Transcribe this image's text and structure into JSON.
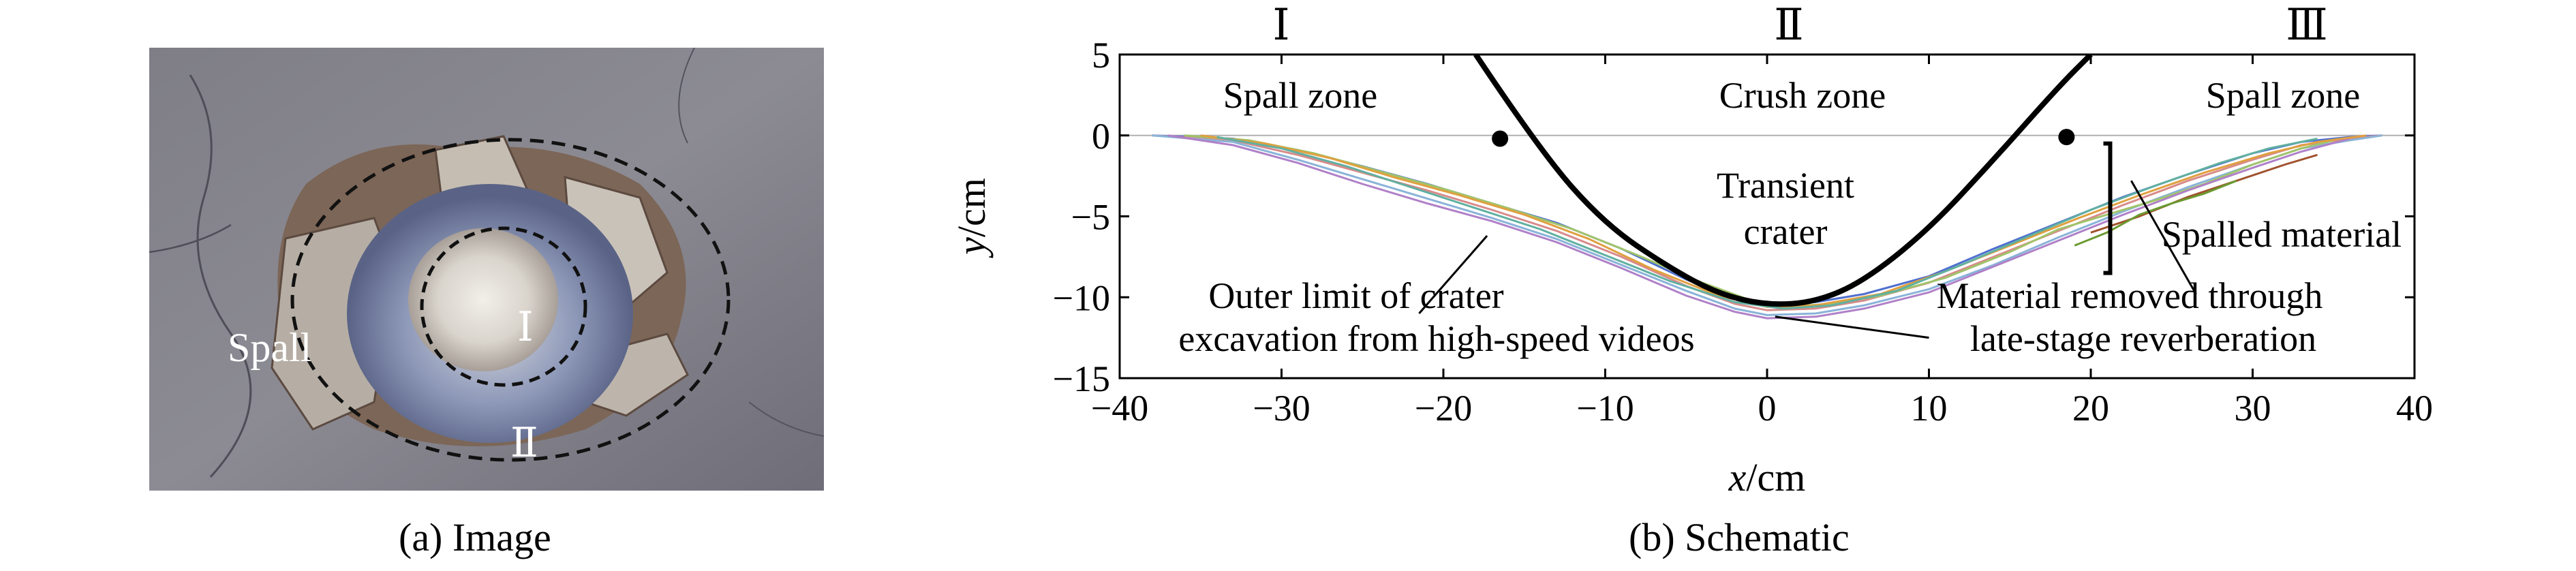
{
  "image_panel": {
    "caption": "(a) Image",
    "spall_label": "Spall",
    "region_I_label": "Ⅰ",
    "region_II_label": "Ⅱ"
  },
  "chart_panel": {
    "caption": "(b) Schematic"
  },
  "chart_data": {
    "type": "line",
    "title": "",
    "xlabel_var": "x",
    "xlabel_unit": "/cm",
    "ylabel_var": "y",
    "ylabel_unit": "/cm",
    "xlim": [
      -40,
      40
    ],
    "ylim": [
      -15,
      5
    ],
    "x_ticks": [
      -40,
      -30,
      -20,
      -10,
      0,
      10,
      20,
      30,
      40
    ],
    "x_tick_labels": [
      "−40",
      "−30",
      "−20",
      "−10",
      "0",
      "10",
      "20",
      "30",
      "40"
    ],
    "y_ticks": [
      5,
      0,
      -5,
      -10,
      -15
    ],
    "y_tick_labels": [
      "5",
      "0",
      "−5",
      "−10",
      "−15"
    ],
    "grid": false,
    "zone_numerals": [
      "Ⅰ",
      "Ⅱ",
      "Ⅲ"
    ],
    "zone_labels": [
      "Spall zone",
      "Crush zone",
      "Spall zone"
    ],
    "annotations": {
      "transient_crater_line1": "Transient",
      "transient_crater_line2": "crater",
      "outer_limit_line1": "Outer limit of crater",
      "outer_limit_line2": "excavation from high-speed videos",
      "material_removed_line1": "Material removed through",
      "material_removed_line2": "late-stage reverberation",
      "spalled_material": "Spalled material"
    },
    "transient_crater_curve": {
      "x": [
        -18,
        -14,
        -10,
        -6,
        -3,
        0,
        3,
        6,
        10,
        14,
        18,
        20
      ],
      "y": [
        5,
        -1.0,
        -5.5,
        -8.2,
        -9.8,
        -10.5,
        -10.3,
        -9.0,
        -5.8,
        -1.5,
        3.0,
        5.0
      ]
    },
    "reference_points": [
      {
        "x": -16.5,
        "y": -0.2
      },
      {
        "x": 18.5,
        "y": -0.1
      }
    ],
    "series": [
      {
        "color": "#4f6fcf",
        "x": [
          -38,
          -33,
          -29,
          -25,
          -21,
          -17,
          -13,
          -9,
          -5,
          -2,
          0,
          3,
          6,
          10,
          14,
          18,
          22,
          26,
          30,
          33,
          36,
          38
        ],
        "y": [
          0,
          -0.2,
          -0.9,
          -1.9,
          -3.0,
          -4.2,
          -5.4,
          -7.0,
          -8.9,
          -10.1,
          -10.4,
          -10.3,
          -9.8,
          -8.7,
          -7.0,
          -5.4,
          -3.8,
          -2.4,
          -1.1,
          -0.4,
          -0.1,
          0
        ]
      },
      {
        "color": "#d88a8a",
        "x": [
          -38,
          -33,
          -29,
          -25,
          -21,
          -17,
          -13,
          -9,
          -5,
          -2,
          0,
          3,
          6,
          10,
          14,
          18,
          22,
          26,
          30,
          33,
          36,
          38
        ],
        "y": [
          0,
          -0.3,
          -1.2,
          -2.3,
          -3.4,
          -4.6,
          -5.9,
          -7.5,
          -9.3,
          -10.4,
          -10.8,
          -10.7,
          -10.2,
          -9.1,
          -7.5,
          -5.9,
          -4.3,
          -2.8,
          -1.5,
          -0.6,
          -0.2,
          0
        ]
      },
      {
        "color": "#8ab3d8",
        "x": [
          -38,
          -33,
          -29,
          -25,
          -21,
          -17,
          -13,
          -9,
          -5,
          -2,
          0,
          3,
          6,
          10,
          14,
          18,
          22,
          26,
          30,
          33,
          36,
          38
        ],
        "y": [
          0,
          -0.4,
          -1.5,
          -2.7,
          -3.9,
          -5.1,
          -6.4,
          -8.0,
          -9.6,
          -10.7,
          -11.1,
          -11.0,
          -10.5,
          -9.5,
          -8.0,
          -6.3,
          -4.7,
          -3.2,
          -1.8,
          -0.8,
          -0.3,
          0
        ]
      },
      {
        "color": "#a0c46a",
        "x": [
          -36,
          -32,
          -28,
          -24,
          -20,
          -16,
          -12,
          -8,
          -4,
          -1,
          1,
          4,
          7,
          11,
          15,
          18,
          21,
          24,
          27,
          30,
          33,
          35
        ],
        "y": [
          0,
          -0.3,
          -1.1,
          -2.2,
          -3.3,
          -4.5,
          -5.8,
          -7.4,
          -9.1,
          -10.2,
          -10.6,
          -10.4,
          -9.9,
          -8.8,
          -7.2,
          -5.8,
          -4.9,
          -4.0,
          -3.0,
          -1.8,
          -0.8,
          -0.3
        ]
      },
      {
        "color": "#b080c8",
        "x": [
          -37,
          -33,
          -29,
          -25,
          -21,
          -17,
          -13,
          -9,
          -5,
          -2,
          0,
          3,
          6,
          10,
          14,
          18,
          22,
          26,
          30,
          33,
          36
        ],
        "y": [
          0,
          -0.6,
          -1.7,
          -3.0,
          -4.2,
          -5.3,
          -6.6,
          -8.2,
          -9.9,
          -10.9,
          -11.3,
          -11.2,
          -10.7,
          -9.7,
          -8.1,
          -6.5,
          -4.9,
          -3.4,
          -2.0,
          -1.0,
          -0.2
        ]
      },
      {
        "color": "#e0a040",
        "x": [
          -35,
          -31,
          -27,
          -23,
          -19,
          -15,
          -11,
          -7,
          -3,
          0,
          3,
          7,
          11,
          15,
          19,
          23,
          27,
          31,
          34,
          37
        ],
        "y": [
          0,
          -0.5,
          -1.4,
          -2.6,
          -3.7,
          -4.9,
          -6.4,
          -8.3,
          -9.9,
          -10.6,
          -10.5,
          -9.8,
          -8.4,
          -6.8,
          -5.2,
          -3.7,
          -2.3,
          -1.1,
          -0.4,
          0
        ]
      },
      {
        "color": "#60b0a0",
        "x": [
          -34,
          -30,
          -26,
          -22,
          -18,
          -14,
          -10,
          -6,
          -2,
          1,
          4,
          8,
          12,
          16,
          20,
          24,
          28,
          31,
          34
        ],
        "y": [
          -0.1,
          -0.8,
          -1.9,
          -3.2,
          -4.5,
          -5.8,
          -7.4,
          -9.0,
          -10.3,
          -10.7,
          -10.5,
          -9.6,
          -8.0,
          -6.3,
          -4.6,
          -3.1,
          -1.7,
          -0.8,
          -0.2
        ]
      },
      {
        "color": "#a0522d",
        "x": [
          20,
          23,
          26,
          29,
          32,
          34
        ],
        "y": [
          -6.0,
          -5.0,
          -3.8,
          -2.8,
          -1.8,
          -1.2
        ]
      },
      {
        "color": "#6a9a30",
        "x": [
          19,
          21,
          23,
          25,
          27,
          29
        ],
        "y": [
          -6.8,
          -6.0,
          -4.9,
          -4.2,
          -3.6,
          -2.8
        ]
      }
    ]
  }
}
